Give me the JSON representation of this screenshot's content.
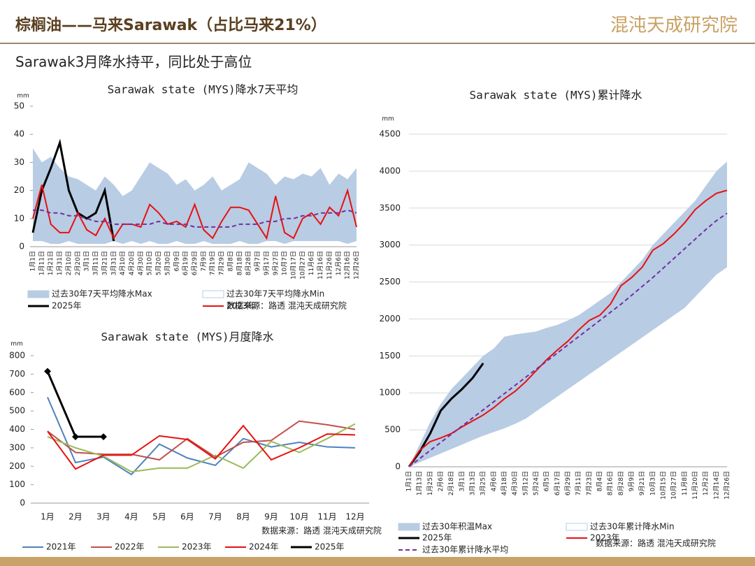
{
  "header": {
    "title": "棕榈油——马来Sarawak（占比马来21%）",
    "logo": "混沌天成研究院",
    "subtitle": "Sarawak3月降水持平，同比处于高位"
  },
  "chart_data": [
    {
      "type": "line",
      "title": "Sarawak state (MYS)降水7天平均",
      "y_unit": "mm",
      "source": "数据来源：路透  混沌天成研究院",
      "categories": [
        "1月1日",
        "1月11日",
        "1月21日",
        "1月31日",
        "2月10日",
        "2月20日",
        "3月1日",
        "3月11日",
        "3月21日",
        "3月31日",
        "4月10日",
        "4月20日",
        "4月30日",
        "5月10日",
        "5月20日",
        "5月30日",
        "6月9日",
        "6月19日",
        "6月29日",
        "7月9日",
        "7月19日",
        "7月29日",
        "8月8日",
        "8月18日",
        "8月28日",
        "9月7日",
        "9月17日",
        "9月27日",
        "10月7日",
        "10月17日",
        "10月27日",
        "11月6日",
        "11月16日",
        "11月26日",
        "12月6日",
        "12月16日",
        "12月26日"
      ],
      "ylim": [
        0,
        50
      ],
      "yticks": [
        0,
        10,
        20,
        30,
        40,
        50
      ],
      "grid": false,
      "series": [
        {
          "name": "过去30年7天平均降水Max",
          "style": "area",
          "color": "#b8cce4",
          "values": [
            35,
            30,
            32,
            28,
            25,
            24,
            22,
            20,
            25,
            22,
            18,
            20,
            25,
            30,
            28,
            26,
            22,
            24,
            20,
            22,
            25,
            20,
            22,
            24,
            30,
            28,
            26,
            22,
            25,
            24,
            26,
            25,
            28,
            22,
            26,
            24,
            28
          ]
        },
        {
          "name": "过去30年7天平均降水Min",
          "style": "area",
          "color": "#ffffff",
          "values": [
            2,
            2,
            1,
            1,
            2,
            1,
            1,
            1,
            1,
            2,
            1,
            2,
            1,
            2,
            1,
            1,
            2,
            1,
            1,
            2,
            1,
            1,
            1,
            2,
            1,
            1,
            2,
            2,
            1,
            2,
            2,
            2,
            2,
            2,
            2,
            1,
            2
          ]
        },
        {
          "name": "2025年",
          "style": "line",
          "color": "#000000",
          "width": 3,
          "values": [
            5,
            20,
            28,
            37,
            20,
            12,
            10,
            12,
            20,
            2,
            null,
            null,
            null,
            null,
            null,
            null,
            null,
            null,
            null,
            null,
            null,
            null,
            null,
            null,
            null,
            null,
            null,
            null,
            null,
            null,
            null,
            null,
            null,
            null,
            null,
            null,
            null
          ]
        },
        {
          "name": "2023年",
          "style": "line",
          "color": "#e81010",
          "width": 2,
          "values": [
            10,
            22,
            8,
            5,
            5,
            12,
            6,
            4,
            10,
            3,
            8,
            8,
            7,
            15,
            12,
            8,
            9,
            7,
            15,
            6,
            3,
            9,
            14,
            14,
            13,
            8,
            3,
            18,
            5,
            3,
            10,
            12,
            8,
            14,
            11,
            20,
            7
          ]
        },
        {
          "style": "line",
          "color": "#7030a0",
          "width": 2,
          "dash": true,
          "values": [
            13,
            13,
            12,
            12,
            11,
            11,
            10,
            9,
            9,
            8,
            8,
            8,
            8,
            8,
            9,
            8,
            8,
            8,
            7,
            7,
            7,
            7,
            7,
            8,
            8,
            8,
            9,
            9,
            10,
            10,
            11,
            11,
            12,
            12,
            12,
            13,
            12
          ]
        }
      ]
    },
    {
      "type": "line",
      "title": "Sarawak state (MYS)月度降水",
      "y_unit": "mm",
      "source": "数据来源：路透  混沌天成研究院",
      "banded": true,
      "categories": [
        "1月",
        "2月",
        "3月",
        "4月",
        "5月",
        "6月",
        "7月",
        "8月",
        "9月",
        "10月",
        "11月",
        "12月"
      ],
      "ylim": [
        0,
        800
      ],
      "yticks": [
        0,
        100,
        200,
        300,
        400,
        500,
        600,
        700,
        800
      ],
      "grid": false,
      "series": [
        {
          "name": "2021年",
          "style": "line",
          "color": "#4f81bd",
          "width": 2,
          "values": [
            575,
            220,
            250,
            155,
            320,
            245,
            205,
            350,
            305,
            330,
            305,
            300
          ]
        },
        {
          "name": "2022年",
          "style": "line",
          "color": "#c0504d",
          "width": 2,
          "values": [
            390,
            275,
            265,
            265,
            235,
            350,
            250,
            330,
            340,
            445,
            425,
            400
          ]
        },
        {
          "name": "2023年",
          "style": "line",
          "color": "#9bbb59",
          "width": 2,
          "values": [
            360,
            300,
            255,
            170,
            190,
            190,
            260,
            190,
            335,
            275,
            350,
            430
          ]
        },
        {
          "name": "2024年",
          "style": "line",
          "color": "#e81010",
          "width": 2,
          "values": [
            390,
            185,
            260,
            260,
            365,
            345,
            240,
            420,
            235,
            300,
            375,
            370
          ]
        },
        {
          "name": "2025年",
          "style": "line",
          "color": "#000000",
          "width": 3,
          "marker": true,
          "values": [
            715,
            360,
            360,
            null,
            null,
            null,
            null,
            null,
            null,
            null,
            null,
            null
          ]
        }
      ]
    },
    {
      "type": "line",
      "title": "Sarawak state (MYS)累计降水",
      "y_unit": "mm",
      "source": "数据来源：路透  混沌天成研究院",
      "categories": [
        "1月1日",
        "1月13日",
        "1月25日",
        "2月6日",
        "2月18日",
        "3月1日",
        "3月13日",
        "3月25日",
        "4月6日",
        "4月18日",
        "4月30日",
        "5月12日",
        "5月24日",
        "6月5日",
        "6月17日",
        "6月29日",
        "7月11日",
        "7月23日",
        "8月4日",
        "8月16日",
        "8月28日",
        "9月9日",
        "9月21日",
        "10月3日",
        "10月15日",
        "10月27日",
        "11月8日",
        "11月20日",
        "12月2日",
        "12月14日",
        "12月26日"
      ],
      "ylim": [
        0,
        4500
      ],
      "yticks": [
        0,
        500,
        1000,
        1500,
        2000,
        2500,
        3000,
        3500,
        4000,
        4500
      ],
      "grid": true,
      "series": [
        {
          "name": "过去30年积温Max",
          "style": "area",
          "color": "#b8cce4",
          "values": [
            0,
            300,
            600,
            850,
            1050,
            1200,
            1350,
            1500,
            1600,
            1760,
            1790,
            1810,
            1830,
            1880,
            1920,
            1980,
            2050,
            2150,
            2250,
            2350,
            2500,
            2650,
            2800,
            3000,
            3150,
            3300,
            3450,
            3600,
            3800,
            4000,
            4130
          ]
        },
        {
          "name": "过去30年累计降水Min",
          "style": "area",
          "color": "#ffffff",
          "values": [
            0,
            60,
            120,
            180,
            240,
            300,
            360,
            420,
            470,
            520,
            580,
            650,
            750,
            850,
            950,
            1050,
            1150,
            1250,
            1350,
            1450,
            1550,
            1650,
            1750,
            1850,
            1950,
            2050,
            2150,
            2300,
            2450,
            2600,
            2700
          ]
        },
        {
          "name": "2025年",
          "style": "line",
          "color": "#000000",
          "width": 3,
          "values": [
            0,
            200,
            450,
            760,
            920,
            1050,
            1200,
            1400,
            null,
            null,
            null,
            null,
            null,
            null,
            null,
            null,
            null,
            null,
            null,
            null,
            null,
            null,
            null,
            null,
            null,
            null,
            null,
            null,
            null,
            null,
            null
          ]
        },
        {
          "name": "2023年",
          "style": "line",
          "color": "#e81010",
          "width": 2,
          "values": [
            0,
            220,
            340,
            390,
            450,
            540,
            620,
            700,
            800,
            920,
            1020,
            1150,
            1300,
            1450,
            1580,
            1700,
            1850,
            1980,
            2050,
            2200,
            2450,
            2560,
            2700,
            2930,
            3020,
            3150,
            3300,
            3480,
            3600,
            3700,
            3740
          ]
        },
        {
          "name": "过去30年累计降水平均",
          "style": "line",
          "color": "#7030a0",
          "width": 2,
          "dash": true,
          "values": [
            0,
            110,
            220,
            330,
            440,
            550,
            660,
            770,
            880,
            990,
            1100,
            1210,
            1320,
            1430,
            1540,
            1650,
            1760,
            1870,
            1980,
            2090,
            2200,
            2320,
            2440,
            2560,
            2690,
            2820,
            2950,
            3080,
            3210,
            3330,
            3430
          ]
        }
      ]
    }
  ]
}
